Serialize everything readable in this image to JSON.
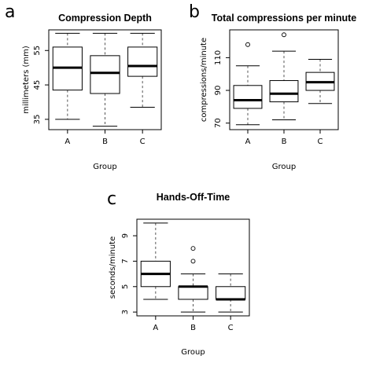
{
  "chart_data": [
    {
      "panel": "a",
      "type": "box",
      "title": "Compression Depth",
      "xlabel": "Group",
      "ylabel": "millimeters (mm)",
      "ylim": [
        32,
        61
      ],
      "yticks": [
        35,
        45,
        55
      ],
      "categories": [
        "A",
        "B",
        "C"
      ],
      "boxes": [
        {
          "min": 35,
          "q1": 43.5,
          "median": 50,
          "q3": 56,
          "max": 60,
          "outliers": []
        },
        {
          "min": 33,
          "q1": 42.5,
          "median": 48.5,
          "q3": 53.5,
          "max": 60,
          "outliers": []
        },
        {
          "min": 38.5,
          "q1": 47.5,
          "median": 50.5,
          "q3": 56,
          "max": 60,
          "outliers": []
        }
      ]
    },
    {
      "panel": "b",
      "type": "box",
      "title": "Total compressions per minute",
      "xlabel": "Group",
      "ylabel": "compressions/minute",
      "ylim": [
        66,
        127
      ],
      "yticks": [
        70,
        90,
        110
      ],
      "categories": [
        "A",
        "B",
        "C"
      ],
      "boxes": [
        {
          "min": 69,
          "q1": 79,
          "median": 84,
          "q3": 93,
          "max": 105,
          "outliers": [
            118
          ]
        },
        {
          "min": 72,
          "q1": 83,
          "median": 88,
          "q3": 96,
          "max": 114,
          "outliers": [
            124
          ]
        },
        {
          "min": 82,
          "q1": 90,
          "median": 95,
          "q3": 101,
          "max": 109,
          "outliers": []
        }
      ]
    },
    {
      "panel": "c",
      "type": "box",
      "title": "Hands-Off-Time",
      "xlabel": "Group",
      "ylabel": "seconds/minute",
      "ylim": [
        2.7,
        10.3
      ],
      "yticks": [
        3,
        5,
        7,
        9
      ],
      "categories": [
        "A",
        "B",
        "C"
      ],
      "boxes": [
        {
          "min": 4,
          "q1": 5,
          "median": 6,
          "q3": 7,
          "max": 10,
          "outliers": []
        },
        {
          "min": 3,
          "q1": 4,
          "median": 5,
          "q3": 5,
          "max": 6,
          "outliers": [
            7,
            8
          ]
        },
        {
          "min": 3,
          "q1": 4,
          "median": 4,
          "q3": 5,
          "max": 6,
          "outliers": []
        }
      ]
    }
  ]
}
